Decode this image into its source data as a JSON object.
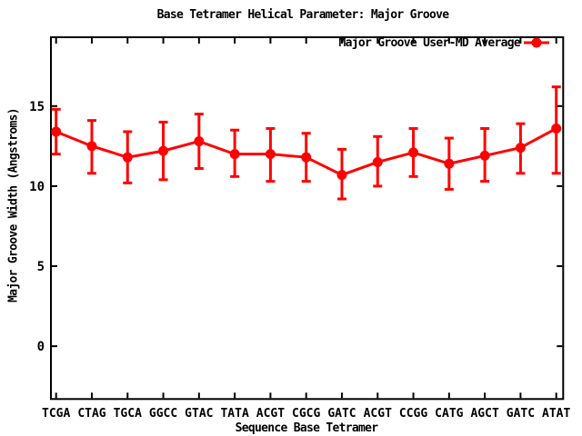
{
  "chart_data": {
    "type": "line",
    "title": "Base Tetramer Helical Parameter: Major Groove",
    "xlabel": "Sequence Base Tetramer",
    "ylabel": "Major Groove Width (Angstroms)",
    "categories": [
      "TCGA",
      "CTAG",
      "TGCA",
      "GGCC",
      "GTAC",
      "TATA",
      "ACGT",
      "CGCG",
      "GATC",
      "ACGT",
      "CCGG",
      "CATG",
      "AGCT",
      "GATC",
      "ATAT"
    ],
    "series": [
      {
        "name": "Major Groove User-MD Average",
        "color": "#ff0000",
        "marker": "filled-circle",
        "values": [
          13.4,
          12.5,
          11.8,
          12.2,
          12.8,
          12.0,
          12.0,
          11.8,
          10.7,
          11.5,
          12.1,
          11.4,
          11.9,
          12.4,
          13.6
        ],
        "error_high": [
          14.8,
          14.1,
          13.4,
          14.0,
          14.5,
          13.5,
          13.6,
          13.3,
          12.3,
          13.1,
          13.6,
          13.0,
          13.6,
          13.9,
          16.2
        ],
        "error_low": [
          12.0,
          10.8,
          10.2,
          10.4,
          11.1,
          10.6,
          10.3,
          10.3,
          9.2,
          10.0,
          10.6,
          9.8,
          10.3,
          10.8,
          10.8
        ]
      }
    ],
    "yticks": [
      0,
      5,
      10,
      15
    ],
    "ylim": [
      -3.3,
      19.3
    ],
    "grid": false,
    "legend_position": "top-right-inside",
    "axis_color": "#000000",
    "background": "#ffffff"
  }
}
